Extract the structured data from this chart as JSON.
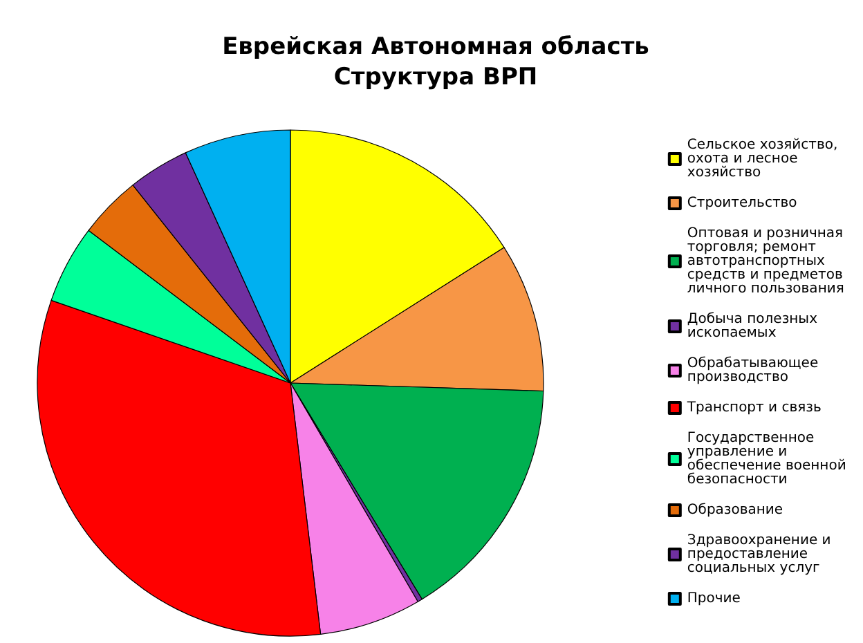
{
  "chart_data": {
    "type": "pie",
    "title": "Еврейская Автономная область\nСтруктура ВРП",
    "categories": [
      "Сельское хозяйство, охота и лесное хозяйство",
      "Строительство",
      "Оптовая и розничная торговля; ремонт автотранспортных средств и предметов личного пользования",
      "Добыча полезных ископаемых",
      "Обрабатывающее производство",
      "Транспорт и связь",
      "Государственное управление и обеспечение военной безопасности",
      "Образование",
      "Здравоохранение и предоставление социальных услуг",
      "Прочие"
    ],
    "values": [
      16,
      9.5,
      15.8,
      0.3,
      6.5,
      32.2,
      5,
      4,
      3.9,
      6.8
    ],
    "colors": [
      "#ffff00",
      "#f79646",
      "#00b050",
      "#7030a0",
      "#f782e8",
      "#ff0000",
      "#00ff99",
      "#e46c0a",
      "#7030a0",
      "#00b0f0"
    ],
    "legend": "right"
  }
}
